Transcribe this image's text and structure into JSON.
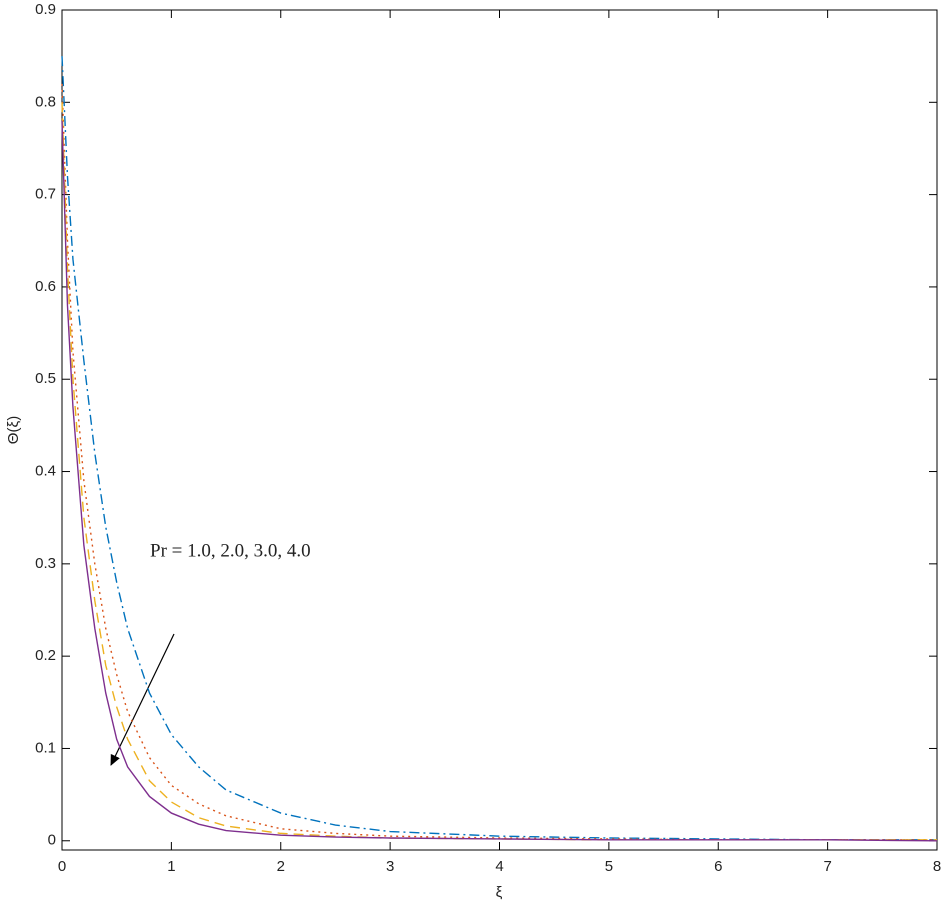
{
  "chart_data": {
    "type": "line",
    "x_label": "ξ",
    "y_label": "Θ(ξ)",
    "annotation": "Pr = 1.0, 2.0, 3.0, 4.0",
    "x": [
      0,
      0.05,
      0.1,
      0.2,
      0.3,
      0.4,
      0.5,
      0.6,
      0.8,
      1.0,
      1.25,
      1.5,
      2,
      2.5,
      3,
      4,
      5,
      6,
      7,
      8
    ],
    "series": [
      {
        "color": "#0072bd",
        "style": "dashdot",
        "values": [
          0.85,
          0.72,
          0.63,
          0.52,
          0.42,
          0.34,
          0.28,
          0.23,
          0.16,
          0.115,
          0.08,
          0.055,
          0.03,
          0.017,
          0.01,
          0.005,
          0.003,
          0.002,
          0.001,
          0.001
        ]
      },
      {
        "color": "#d95319",
        "style": "dotted",
        "values": [
          0.82,
          0.65,
          0.53,
          0.39,
          0.3,
          0.23,
          0.18,
          0.14,
          0.09,
          0.06,
          0.04,
          0.027,
          0.013,
          0.008,
          0.005,
          0.003,
          0.002,
          0.001,
          0.001,
          0.001
        ]
      },
      {
        "color": "#edb120",
        "style": "dashed",
        "values": [
          0.8,
          0.62,
          0.5,
          0.35,
          0.26,
          0.19,
          0.145,
          0.11,
          0.065,
          0.042,
          0.025,
          0.016,
          0.008,
          0.005,
          0.003,
          0.002,
          0.001,
          0.001,
          0.001,
          0.001
        ]
      },
      {
        "color": "#7e2f8e",
        "style": "solid",
        "values": [
          0.78,
          0.58,
          0.47,
          0.32,
          0.23,
          0.16,
          0.11,
          0.08,
          0.048,
          0.03,
          0.018,
          0.011,
          0.006,
          0.004,
          0.003,
          0.002,
          0.001,
          0.001,
          0.001,
          0
        ]
      }
    ],
    "xlim": [
      0,
      8
    ],
    "xticks": [
      0,
      1,
      2,
      3,
      4,
      5,
      6,
      7,
      8
    ],
    "ylim": [
      -0.01,
      0.9
    ],
    "yticks": [
      0,
      0.1,
      0.2,
      0.3,
      0.4,
      0.5,
      0.6,
      0.7,
      0.8,
      0.9
    ],
    "grid": false
  }
}
